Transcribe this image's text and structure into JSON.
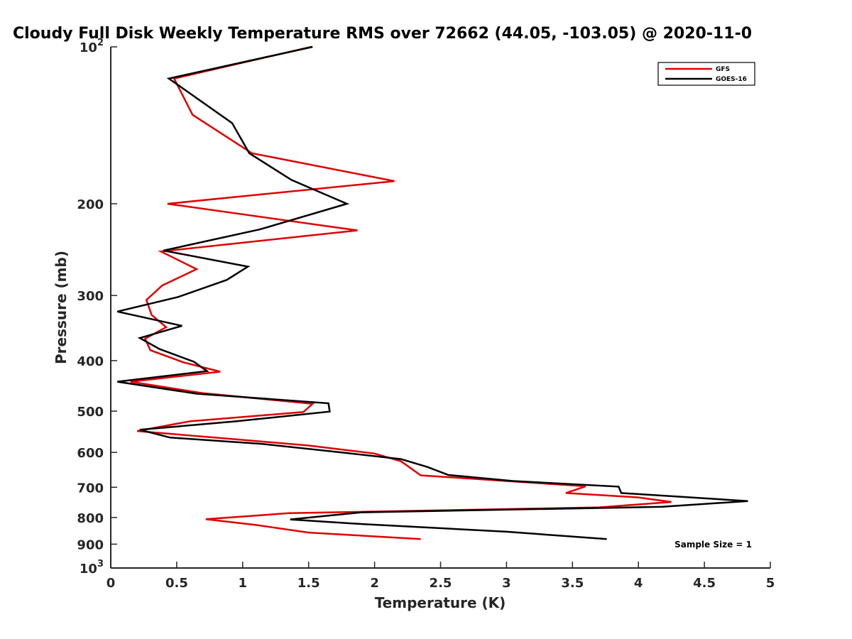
{
  "chart_data": {
    "type": "line",
    "title": "Cloudy Full Disk Weekly Temperature RMS over 72662 (44.05, -103.05) @ 2020-11-0",
    "xlabel": "Temperature (K)",
    "ylabel": "Pressure (mb)",
    "xlim": [
      0,
      5
    ],
    "ylim": [
      100,
      1000
    ],
    "y_scale": "log",
    "y_reversed": true,
    "grid": false,
    "legend_position": "top-right",
    "x_ticks": [
      0,
      0.5,
      1,
      1.5,
      2,
      2.5,
      3,
      3.5,
      4,
      4.5,
      5
    ],
    "x_tick_labels": [
      "0",
      "0.5",
      "1",
      "1.5",
      "2",
      "2.5",
      "3",
      "3.5",
      "4",
      "4.5",
      "5"
    ],
    "y_ticks": [
      {
        "value": 100,
        "base": "10",
        "exp": "2"
      },
      {
        "value": 200,
        "label": "200"
      },
      {
        "value": 300,
        "label": "300"
      },
      {
        "value": 400,
        "label": "400"
      },
      {
        "value": 500,
        "label": "500"
      },
      {
        "value": 600,
        "label": "600"
      },
      {
        "value": 700,
        "label": "700"
      },
      {
        "value": 800,
        "label": "800"
      },
      {
        "value": 900,
        "label": "900"
      },
      {
        "value": 1000,
        "base": "10",
        "exp": "3"
      }
    ],
    "annotation": "Sample Size = 1",
    "series": [
      {
        "name": "GFS",
        "color": "#e00000",
        "points": [
          {
            "x": 1.52,
            "y": 100
          },
          {
            "x": 0.48,
            "y": 115
          },
          {
            "x": 0.62,
            "y": 135
          },
          {
            "x": 1.07,
            "y": 160
          },
          {
            "x": 2.15,
            "y": 181
          },
          {
            "x": 0.43,
            "y": 200
          },
          {
            "x": 1.87,
            "y": 225
          },
          {
            "x": 0.38,
            "y": 247
          },
          {
            "x": 0.65,
            "y": 267
          },
          {
            "x": 0.39,
            "y": 287
          },
          {
            "x": 0.27,
            "y": 306
          },
          {
            "x": 0.31,
            "y": 327
          },
          {
            "x": 0.42,
            "y": 345
          },
          {
            "x": 0.26,
            "y": 363
          },
          {
            "x": 0.3,
            "y": 382
          },
          {
            "x": 0.55,
            "y": 403
          },
          {
            "x": 0.83,
            "y": 420
          },
          {
            "x": 0.15,
            "y": 439
          },
          {
            "x": 0.7,
            "y": 462
          },
          {
            "x": 1.53,
            "y": 484
          },
          {
            "x": 1.46,
            "y": 502
          },
          {
            "x": 0.6,
            "y": 523
          },
          {
            "x": 0.2,
            "y": 546
          },
          {
            "x": 0.9,
            "y": 565
          },
          {
            "x": 1.5,
            "y": 582
          },
          {
            "x": 2.0,
            "y": 603
          },
          {
            "x": 2.2,
            "y": 624
          },
          {
            "x": 2.35,
            "y": 664
          },
          {
            "x": 3.0,
            "y": 681
          },
          {
            "x": 3.6,
            "y": 697
          },
          {
            "x": 3.45,
            "y": 718
          },
          {
            "x": 4.0,
            "y": 732
          },
          {
            "x": 4.25,
            "y": 747
          },
          {
            "x": 3.7,
            "y": 765
          },
          {
            "x": 1.35,
            "y": 785
          },
          {
            "x": 0.72,
            "y": 806
          },
          {
            "x": 1.1,
            "y": 827
          },
          {
            "x": 1.5,
            "y": 855
          },
          {
            "x": 2.35,
            "y": 880
          }
        ]
      },
      {
        "name": "GOES-16",
        "color": "#000000",
        "points": [
          {
            "x": 1.53,
            "y": 100
          },
          {
            "x": 0.44,
            "y": 115
          },
          {
            "x": 0.92,
            "y": 140
          },
          {
            "x": 1.05,
            "y": 160
          },
          {
            "x": 1.37,
            "y": 180
          },
          {
            "x": 1.79,
            "y": 200
          },
          {
            "x": 1.13,
            "y": 224
          },
          {
            "x": 0.4,
            "y": 246
          },
          {
            "x": 1.04,
            "y": 264
          },
          {
            "x": 0.88,
            "y": 280
          },
          {
            "x": 0.51,
            "y": 302
          },
          {
            "x": 0.05,
            "y": 322
          },
          {
            "x": 0.54,
            "y": 343
          },
          {
            "x": 0.22,
            "y": 362
          },
          {
            "x": 0.37,
            "y": 380
          },
          {
            "x": 0.63,
            "y": 402
          },
          {
            "x": 0.73,
            "y": 419
          },
          {
            "x": 0.05,
            "y": 439
          },
          {
            "x": 0.65,
            "y": 463
          },
          {
            "x": 1.65,
            "y": 483
          },
          {
            "x": 1.66,
            "y": 501
          },
          {
            "x": 0.95,
            "y": 523
          },
          {
            "x": 0.22,
            "y": 543
          },
          {
            "x": 0.45,
            "y": 562
          },
          {
            "x": 1.15,
            "y": 578
          },
          {
            "x": 1.75,
            "y": 600
          },
          {
            "x": 2.2,
            "y": 618
          },
          {
            "x": 2.4,
            "y": 640
          },
          {
            "x": 2.56,
            "y": 663
          },
          {
            "x": 3.05,
            "y": 681
          },
          {
            "x": 3.85,
            "y": 698
          },
          {
            "x": 3.87,
            "y": 718
          },
          {
            "x": 4.83,
            "y": 744
          },
          {
            "x": 4.18,
            "y": 763
          },
          {
            "x": 1.9,
            "y": 782
          },
          {
            "x": 1.36,
            "y": 807
          },
          {
            "x": 1.85,
            "y": 822
          },
          {
            "x": 3.0,
            "y": 852
          },
          {
            "x": 3.76,
            "y": 880
          }
        ]
      }
    ]
  }
}
